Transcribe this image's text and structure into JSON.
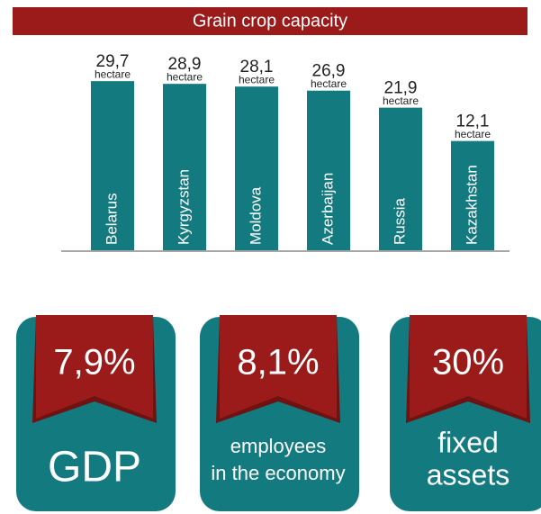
{
  "chart_data": {
    "type": "bar",
    "title": "Grain crop capacity",
    "categories": [
      "Belarus",
      "Kyrgyzstan",
      "Moldova",
      "Azerbaijan",
      "Russia",
      "Kazakhstan"
    ],
    "values": [
      29.7,
      28.9,
      28.1,
      26.9,
      21.9,
      12.1
    ],
    "value_labels": [
      "29,7",
      "28,9",
      "28,1",
      "26,9",
      "21,9",
      "12,1"
    ],
    "unit": "hectare",
    "color": "#137a80",
    "ylim": [
      -20,
      30
    ]
  },
  "cards": [
    {
      "value": "7,9%",
      "label": [
        "GDP"
      ]
    },
    {
      "value": "8,1%",
      "label": [
        "employees",
        "in the economy"
      ]
    },
    {
      "value": "30%",
      "label": [
        "fixed",
        "assets"
      ]
    }
  ]
}
